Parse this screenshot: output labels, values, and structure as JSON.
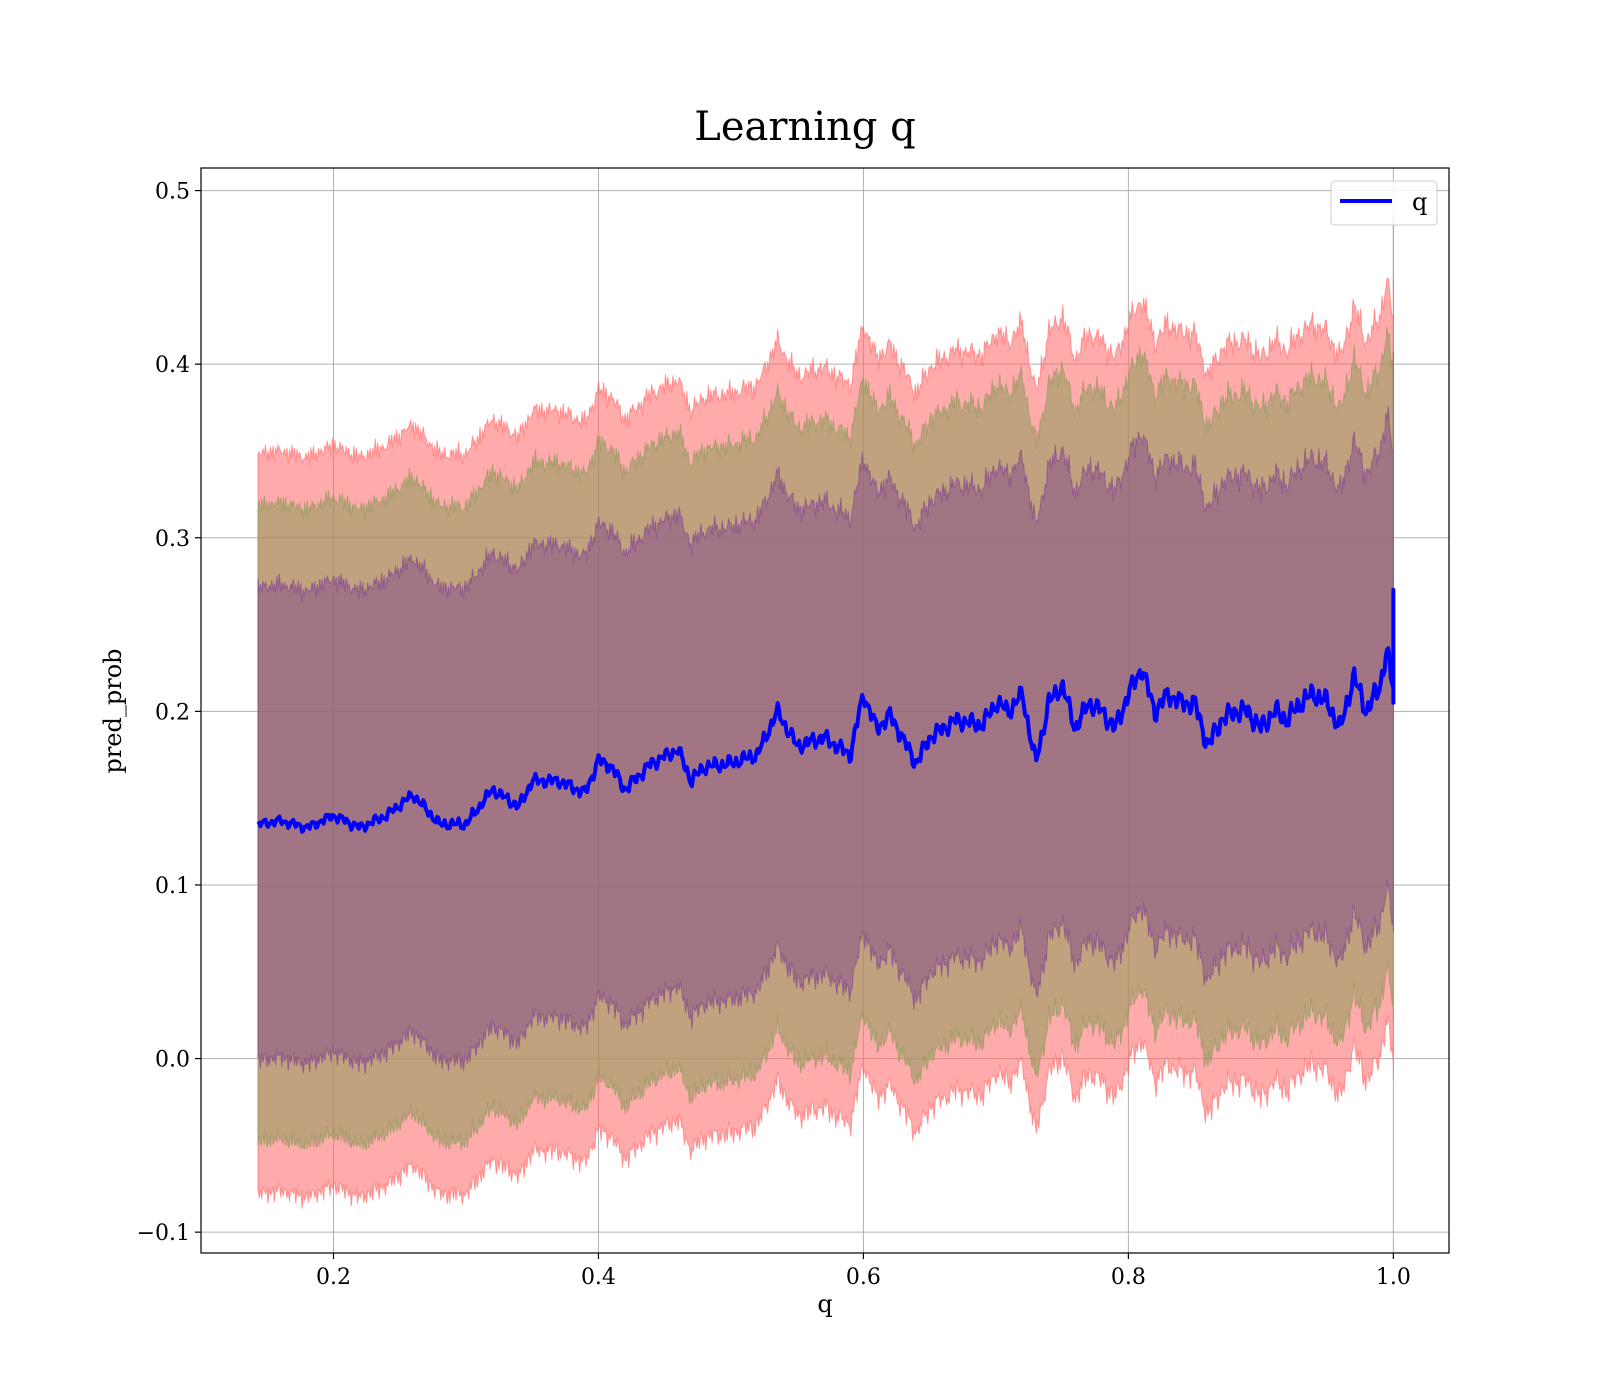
{
  "chart_data": {
    "type": "line",
    "title": "Learning q",
    "xlabel": "q",
    "ylabel": "pred_prob",
    "xlim": [
      0.1,
      1.042
    ],
    "ylim": [
      -0.112,
      0.513
    ],
    "xticks": [
      0.2,
      0.4,
      0.6,
      0.8,
      1.0
    ],
    "xtick_labels": [
      "0.2",
      "0.4",
      "0.6",
      "0.8",
      "1.0"
    ],
    "yticks": [
      -0.1,
      0.0,
      0.1,
      0.2,
      0.3,
      0.4,
      0.5
    ],
    "ytick_labels": [
      "−0.1",
      "0.0",
      "0.1",
      "0.2",
      "0.3",
      "0.4",
      "0.5"
    ],
    "grid": true,
    "legend": {
      "position": "top-right",
      "entries": [
        {
          "label": "q",
          "color": "#0000ff"
        }
      ]
    },
    "band_offsets": [
      {
        "upper": 0.213,
        "lower": -0.213,
        "color": "#ff6666",
        "opacity": 0.55
      },
      {
        "upper": 0.183,
        "lower": -0.183,
        "color": "#8c9a5a",
        "opacity": 0.55
      },
      {
        "upper": 0.136,
        "lower": -0.136,
        "color": "#7f3f8f",
        "opacity": 0.45
      }
    ],
    "series": [
      {
        "name": "q",
        "color": "#0000ff",
        "x": [
          0.143,
          0.16,
          0.18,
          0.2,
          0.22,
          0.24,
          0.26,
          0.28,
          0.3,
          0.32,
          0.34,
          0.35,
          0.37,
          0.39,
          0.4,
          0.41,
          0.42,
          0.44,
          0.46,
          0.47,
          0.48,
          0.5,
          0.52,
          0.535,
          0.55,
          0.57,
          0.59,
          0.6,
          0.61,
          0.62,
          0.64,
          0.65,
          0.67,
          0.69,
          0.7,
          0.71,
          0.72,
          0.73,
          0.74,
          0.75,
          0.76,
          0.77,
          0.78,
          0.79,
          0.8,
          0.81,
          0.82,
          0.83,
          0.84,
          0.85,
          0.86,
          0.87,
          0.88,
          0.89,
          0.9,
          0.91,
          0.92,
          0.93,
          0.94,
          0.95,
          0.96,
          0.97,
          0.98,
          0.99,
          0.995,
          1.0
        ],
        "values": [
          0.135,
          0.137,
          0.133,
          0.14,
          0.133,
          0.14,
          0.152,
          0.135,
          0.135,
          0.155,
          0.145,
          0.16,
          0.16,
          0.153,
          0.172,
          0.168,
          0.155,
          0.17,
          0.178,
          0.16,
          0.168,
          0.17,
          0.175,
          0.2,
          0.18,
          0.185,
          0.175,
          0.21,
          0.19,
          0.198,
          0.17,
          0.185,
          0.195,
          0.192,
          0.205,
          0.2,
          0.21,
          0.17,
          0.205,
          0.215,
          0.19,
          0.205,
          0.2,
          0.19,
          0.21,
          0.225,
          0.2,
          0.21,
          0.205,
          0.205,
          0.18,
          0.195,
          0.2,
          0.2,
          0.19,
          0.2,
          0.195,
          0.205,
          0.21,
          0.205,
          0.19,
          0.22,
          0.2,
          0.215,
          0.235,
          0.213
        ]
      }
    ]
  }
}
